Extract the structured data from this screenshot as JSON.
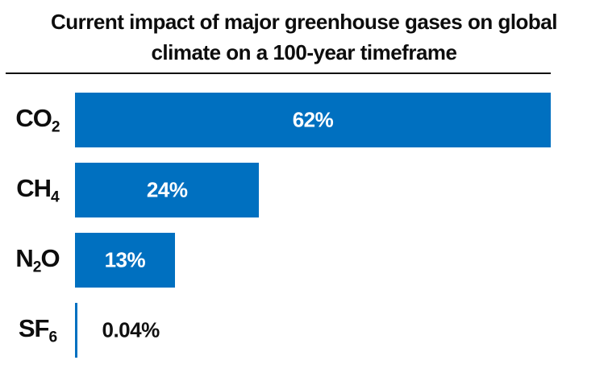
{
  "chart": {
    "title_line1": "Current impact of major greenhouse gases on global",
    "title_line2": "climate on a 100-year timeframe"
  },
  "chart_data": {
    "type": "bar",
    "orientation": "horizontal",
    "title": "Current impact of major greenhouse gases on global climate on a 100-year timeframe",
    "categories": [
      "CO2",
      "CH4",
      "N2O",
      "SF6"
    ],
    "values": [
      62,
      24,
      13,
      0.04
    ],
    "unit": "%",
    "axes": "none",
    "gridlines": false,
    "legend": "none",
    "colors": {
      "bar": "#0070C0",
      "title_text": "#0d0d0d",
      "value_label_inside": "#ffffff",
      "value_label_outside": "#111111"
    },
    "rows": [
      {
        "formula_pre": "CO",
        "formula_sub": "2",
        "formula_post": "",
        "value": 62,
        "value_label": "62%",
        "label_inside": true
      },
      {
        "formula_pre": "CH",
        "formula_sub": "4",
        "formula_post": "",
        "value": 24,
        "value_label": "24%",
        "label_inside": true
      },
      {
        "formula_pre": "N",
        "formula_sub": "2",
        "formula_post": "O",
        "value": 13,
        "value_label": "13%",
        "label_inside": true
      },
      {
        "formula_pre": "SF",
        "formula_sub": "6",
        "formula_post": "",
        "value": 0.04,
        "value_label": "0.04%",
        "label_inside": false
      }
    ]
  }
}
